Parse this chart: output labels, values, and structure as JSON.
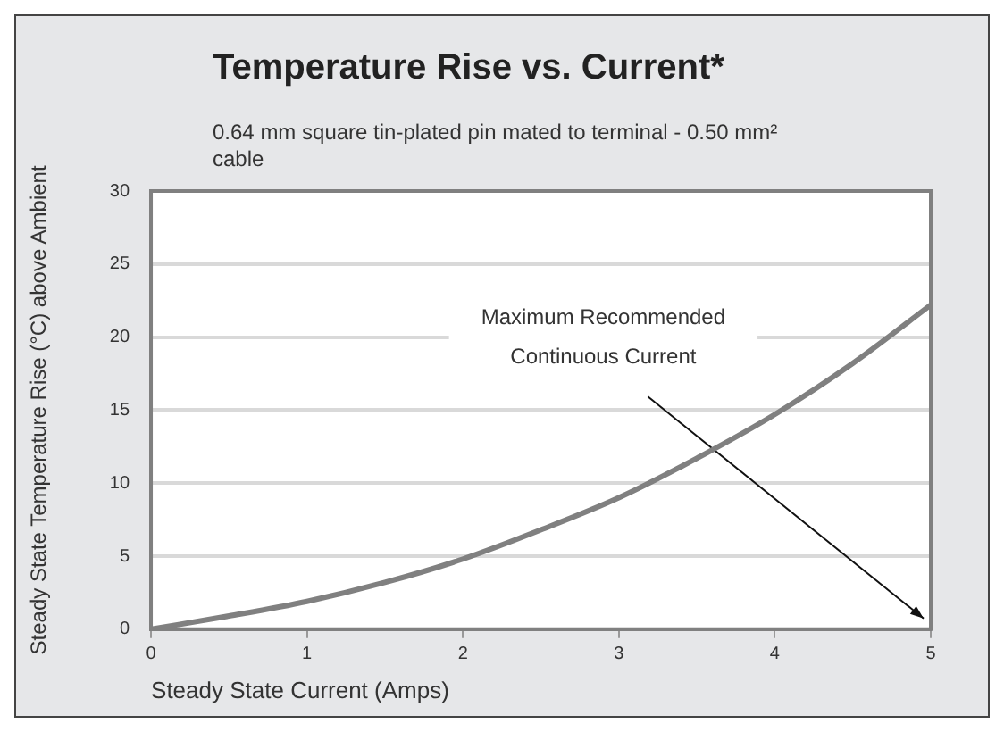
{
  "chart_data": {
    "type": "line",
    "title": "Temperature Rise vs. Current*",
    "subtitle": "0.64 mm square tin-plated pin mated to terminal - 0.50 mm² cable",
    "xlabel": "Steady State Current (Amps)",
    "ylabel": "Steady State Temperature Rise (°C) above Ambient",
    "x": [
      0,
      0.5,
      1,
      1.5,
      2,
      2.5,
      3,
      3.5,
      4,
      4.5,
      5
    ],
    "series": [
      {
        "color": "#808080",
        "values": [
          0,
          0.9,
          1.9,
          3.2,
          4.8,
          6.8,
          9.0,
          11.7,
          14.7,
          18.2,
          22.2
        ]
      }
    ],
    "xlim": [
      0,
      5
    ],
    "xticks": [
      0,
      1,
      2,
      3,
      4,
      5
    ],
    "ylim": [
      0,
      30
    ],
    "yticks": [
      0,
      5,
      10,
      15,
      20,
      25,
      30
    ],
    "grid": "y",
    "marker": "none",
    "line_style": "solid",
    "annotations": [
      "Maximum Recommended Continuous Current"
    ]
  }
}
